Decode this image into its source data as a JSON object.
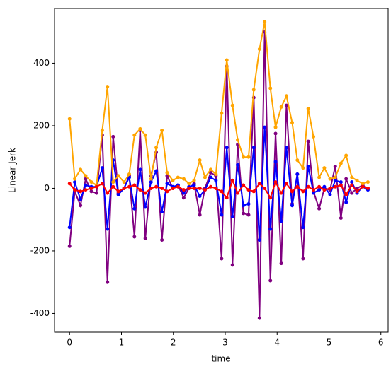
{
  "chart_data": {
    "type": "line",
    "xlabel": "time",
    "ylabel": "Linear Jerk",
    "x": [
      0,
      0.1,
      0.21,
      0.31,
      0.42,
      0.52,
      0.63,
      0.73,
      0.84,
      0.94,
      1.05,
      1.15,
      1.25,
      1.36,
      1.46,
      1.57,
      1.67,
      1.78,
      1.88,
      1.99,
      2.09,
      2.2,
      2.3,
      2.4,
      2.51,
      2.61,
      2.72,
      2.82,
      2.93,
      3.03,
      3.14,
      3.24,
      3.35,
      3.45,
      3.55,
      3.66,
      3.76,
      3.87,
      3.97,
      4.08,
      4.18,
      4.29,
      4.39,
      4.5,
      4.6,
      4.7,
      4.81,
      4.91,
      5.02,
      5.12,
      5.23,
      5.33,
      5.44,
      5.54,
      5.65,
      5.75
    ],
    "series": [
      {
        "color": "purple",
        "values": [
          -185,
          -10,
          -55,
          30,
          -10,
          -15,
          170,
          -300,
          165,
          -15,
          0,
          40,
          -155,
          185,
          -160,
          40,
          115,
          -165,
          40,
          0,
          10,
          -30,
          0,
          15,
          -85,
          0,
          50,
          40,
          -225,
          390,
          -245,
          140,
          -80,
          -85,
          290,
          -415,
          500,
          -295,
          175,
          -240,
          265,
          -50,
          45,
          -225,
          150,
          -10,
          -65,
          0,
          -5,
          70,
          -95,
          30,
          -15,
          0,
          10,
          0
        ]
      },
      {
        "color": "blue",
        "values": [
          -125,
          20,
          -35,
          10,
          5,
          5,
          65,
          -130,
          90,
          -20,
          0,
          35,
          -65,
          60,
          -60,
          20,
          55,
          -75,
          15,
          5,
          10,
          -15,
          5,
          10,
          -25,
          -5,
          35,
          25,
          -85,
          130,
          -90,
          75,
          -55,
          -50,
          130,
          -165,
          195,
          -130,
          85,
          -105,
          130,
          -55,
          45,
          -125,
          70,
          -15,
          -5,
          5,
          -20,
          25,
          20,
          -45,
          20,
          -15,
          5,
          -5
        ]
      },
      {
        "color": "orange",
        "values": [
          222,
          30,
          60,
          40,
          20,
          10,
          185,
          325,
          20,
          40,
          20,
          45,
          170,
          190,
          170,
          30,
          130,
          185,
          50,
          25,
          35,
          30,
          15,
          25,
          90,
          35,
          60,
          45,
          240,
          410,
          265,
          155,
          100,
          100,
          315,
          445,
          532,
          320,
          195,
          260,
          295,
          210,
          90,
          65,
          255,
          165,
          35,
          65,
          30,
          35,
          80,
          105,
          35,
          25,
          15,
          20
        ]
      },
      {
        "color": "red",
        "values": [
          15,
          -5,
          -10,
          -5,
          0,
          5,
          15,
          -15,
          5,
          -10,
          0,
          5,
          10,
          -5,
          -15,
          0,
          5,
          0,
          -10,
          0,
          5,
          -5,
          0,
          0,
          0,
          -5,
          5,
          0,
          -10,
          -30,
          25,
          -15,
          10,
          -5,
          -10,
          15,
          0,
          -30,
          20,
          -15,
          15,
          -10,
          5,
          -10,
          5,
          -5,
          5,
          -5,
          0,
          5,
          10,
          -20,
          10,
          -10,
          5,
          0
        ]
      }
    ],
    "xlim": [
      -0.29,
      6.14
    ],
    "xticks": [
      0,
      1,
      2,
      3,
      4,
      5,
      6
    ],
    "ylim": [
      -460,
      575
    ],
    "yticks": [
      -400,
      -200,
      0,
      200,
      400
    ]
  }
}
